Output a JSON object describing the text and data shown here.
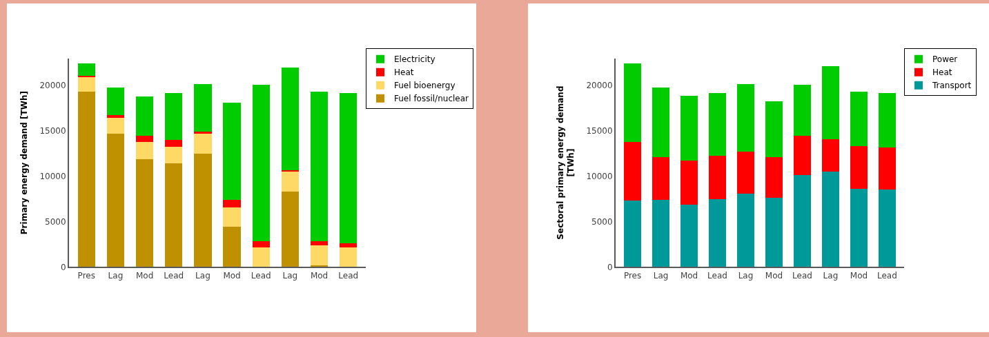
{
  "chart_data": [
    {
      "type": "bar",
      "stacked": true,
      "ylabel": "Primary energy demand [TWh]",
      "categories": [
        "Pres",
        "Lag",
        "Mod",
        "Lead",
        "Lag",
        "Mod",
        "Lead",
        "Lag",
        "Mod",
        "Lead"
      ],
      "ylim": [
        0,
        23000
      ],
      "yticks": [
        0,
        5000,
        10000,
        15000,
        20000
      ],
      "legend": "top right",
      "series": [
        {
          "name": "Fuel fossil/nuclear",
          "color": "#bf9000",
          "values": [
            19300,
            14700,
            11850,
            11450,
            12500,
            4400,
            0,
            8300,
            200,
            0
          ]
        },
        {
          "name": "Fuel bioenergy",
          "color": "#ffd966",
          "values": [
            1650,
            1750,
            1950,
            1800,
            2200,
            2200,
            2150,
            2200,
            2150,
            2150
          ]
        },
        {
          "name": "Heat",
          "color": "#ff0000",
          "values": [
            100,
            300,
            700,
            800,
            200,
            800,
            700,
            200,
            500,
            500
          ]
        },
        {
          "name": "Electricity",
          "color": "#00cc00",
          "values": [
            1400,
            3050,
            4300,
            5100,
            5300,
            10700,
            17250,
            11300,
            16500,
            16550
          ]
        }
      ]
    },
    {
      "type": "bar",
      "stacked": true,
      "ylabel": "Sectoral primary energy demand\n[TWh]",
      "categories": [
        "Pres",
        "Lag",
        "Mod",
        "Lead",
        "Lag",
        "Mod",
        "Lead",
        "Lag",
        "Mod",
        "Lead"
      ],
      "ylim": [
        0,
        23000
      ],
      "yticks": [
        0,
        5000,
        10000,
        15000,
        20000
      ],
      "legend": "top right",
      "series": [
        {
          "name": "Transport",
          "color": "#009999",
          "values": [
            7300,
            7400,
            6900,
            7500,
            8100,
            7600,
            10100,
            10500,
            8650,
            8550
          ]
        },
        {
          "name": "Heat",
          "color": "#ff0000",
          "values": [
            6500,
            4700,
            4800,
            4800,
            4650,
            4500,
            4400,
            3600,
            4700,
            4600
          ]
        },
        {
          "name": "Power",
          "color": "#00cc00",
          "values": [
            8650,
            7700,
            7150,
            6850,
            7450,
            6150,
            5600,
            8050,
            6000,
            6000
          ]
        }
      ]
    }
  ]
}
